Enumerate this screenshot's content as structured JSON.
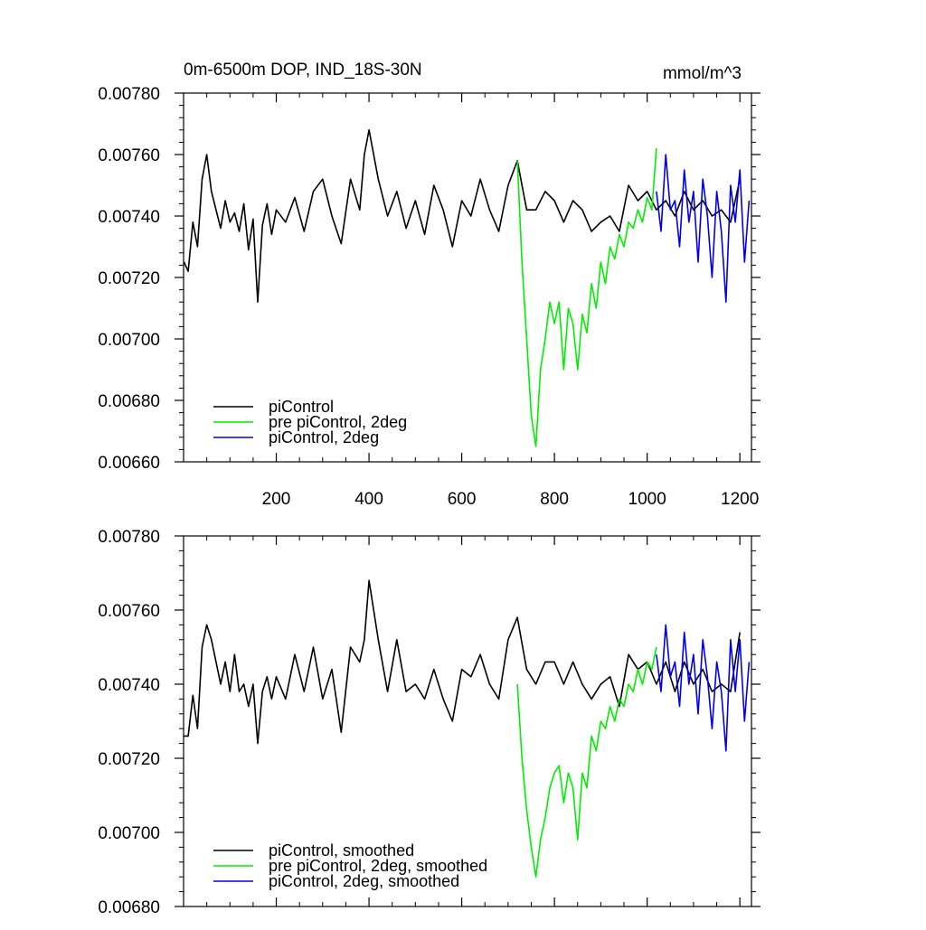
{
  "chart_data": [
    {
      "type": "line",
      "title": "0m-6500m DOP, IND_18S-30N",
      "units": "mmol/m^3",
      "xlim": [
        0,
        1225
      ],
      "ylim": [
        0.0066,
        0.0078
      ],
      "xticks": [
        200,
        400,
        600,
        800,
        1000,
        1200
      ],
      "xtick_labels": [
        "200",
        "400",
        "600",
        "800",
        "1000",
        "1200"
      ],
      "yticks": [
        0.0066,
        0.0068,
        0.007,
        0.0072,
        0.0074,
        0.0076,
        0.0078
      ],
      "ytick_labels": [
        "0.00660",
        "0.00680",
        "0.00700",
        "0.00720",
        "0.00740",
        "0.00760",
        "0.00780"
      ],
      "legend_position": "bottom-left",
      "series": [
        {
          "name": "piControl",
          "color": "#000000",
          "x": [
            1,
            10,
            20,
            30,
            40,
            50,
            60,
            70,
            80,
            90,
            100,
            110,
            120,
            130,
            140,
            150,
            160,
            170,
            180,
            190,
            200,
            220,
            240,
            260,
            280,
            300,
            320,
            340,
            360,
            380,
            390,
            400,
            420,
            440,
            460,
            480,
            500,
            520,
            540,
            560,
            580,
            600,
            620,
            640,
            660,
            680,
            700,
            720,
            740,
            760,
            780,
            800,
            820,
            840,
            860,
            880,
            900,
            920,
            940,
            960,
            980,
            1000,
            1020,
            1040,
            1060,
            1080,
            1100,
            1120,
            1140,
            1160,
            1180,
            1200
          ],
          "y": [
            0.00725,
            0.00722,
            0.00738,
            0.0073,
            0.00752,
            0.0076,
            0.00748,
            0.00742,
            0.00736,
            0.00745,
            0.00738,
            0.00741,
            0.00735,
            0.00744,
            0.00729,
            0.00739,
            0.00712,
            0.00737,
            0.00744,
            0.00734,
            0.00742,
            0.00738,
            0.00746,
            0.00735,
            0.00748,
            0.00752,
            0.0074,
            0.00731,
            0.00752,
            0.00742,
            0.0076,
            0.00768,
            0.00752,
            0.0074,
            0.00748,
            0.00736,
            0.00745,
            0.00734,
            0.0075,
            0.00742,
            0.0073,
            0.00745,
            0.0074,
            0.00752,
            0.00742,
            0.00735,
            0.0075,
            0.00758,
            0.00742,
            0.00742,
            0.00748,
            0.00745,
            0.00738,
            0.00745,
            0.00742,
            0.00735,
            0.00738,
            0.0074,
            0.00735,
            0.0075,
            0.00745,
            0.00748,
            0.00742,
            0.00745,
            0.0074,
            0.00748,
            0.00742,
            0.00745,
            0.0074,
            0.00742,
            0.00738,
            0.00752
          ]
        },
        {
          "name": "pre piControl, 2deg",
          "color": "#00ee00",
          "x": [
            720,
            730,
            740,
            750,
            760,
            770,
            780,
            790,
            800,
            810,
            820,
            830,
            840,
            850,
            860,
            870,
            880,
            890,
            900,
            910,
            920,
            930,
            940,
            950,
            960,
            970,
            980,
            990,
            1000,
            1010,
            1020
          ],
          "y": [
            0.00758,
            0.00725,
            0.007,
            0.00675,
            0.00665,
            0.0069,
            0.007,
            0.00712,
            0.00705,
            0.00712,
            0.0069,
            0.0071,
            0.00705,
            0.0069,
            0.00708,
            0.00702,
            0.00718,
            0.0071,
            0.00725,
            0.00718,
            0.0073,
            0.00726,
            0.00734,
            0.0073,
            0.00738,
            0.00736,
            0.00742,
            0.00738,
            0.00746,
            0.00742,
            0.00762
          ]
        },
        {
          "name": "piControl, 2deg",
          "color": "#0000ee",
          "x": [
            1020,
            1030,
            1040,
            1050,
            1060,
            1070,
            1080,
            1090,
            1100,
            1110,
            1120,
            1130,
            1140,
            1150,
            1160,
            1170,
            1180,
            1190,
            1200,
            1210,
            1220
          ],
          "y": [
            0.00748,
            0.00735,
            0.0076,
            0.00742,
            0.00745,
            0.0073,
            0.00755,
            0.00738,
            0.00748,
            0.00725,
            0.00752,
            0.0074,
            0.0072,
            0.00748,
            0.00735,
            0.00712,
            0.0075,
            0.00738,
            0.00755,
            0.00725,
            0.00745
          ]
        }
      ]
    },
    {
      "type": "line",
      "xlim": [
        0,
        1225
      ],
      "ylim": [
        0.0068,
        0.0078
      ],
      "xticks": [
        200,
        400,
        600,
        800,
        1000,
        1200
      ],
      "yticks": [
        0.0068,
        0.007,
        0.0072,
        0.0074,
        0.0076,
        0.0078
      ],
      "ytick_labels": [
        "0.00680",
        "0.00700",
        "0.00720",
        "0.00740",
        "0.00760",
        "0.00780"
      ],
      "legend_position": "bottom-left",
      "series": [
        {
          "name": "piControl, smoothed",
          "color": "#000000",
          "x": [
            1,
            10,
            20,
            30,
            40,
            50,
            60,
            70,
            80,
            90,
            100,
            110,
            120,
            130,
            140,
            150,
            160,
            170,
            180,
            190,
            200,
            220,
            240,
            260,
            280,
            300,
            320,
            340,
            360,
            380,
            390,
            400,
            420,
            440,
            460,
            480,
            500,
            520,
            540,
            560,
            580,
            600,
            620,
            640,
            660,
            680,
            700,
            720,
            740,
            760,
            780,
            800,
            820,
            840,
            860,
            880,
            900,
            920,
            940,
            960,
            980,
            1000,
            1020,
            1040,
            1060,
            1080,
            1100,
            1120,
            1140,
            1160,
            1180,
            1200
          ],
          "y": [
            0.00726,
            0.00726,
            0.00737,
            0.00728,
            0.0075,
            0.00756,
            0.00752,
            0.00746,
            0.0074,
            0.00746,
            0.00738,
            0.00748,
            0.00738,
            0.0074,
            0.00734,
            0.0074,
            0.00724,
            0.00738,
            0.00742,
            0.00736,
            0.00742,
            0.00736,
            0.00748,
            0.00738,
            0.0075,
            0.00736,
            0.00744,
            0.00727,
            0.0075,
            0.00746,
            0.00752,
            0.00768,
            0.00752,
            0.00738,
            0.00752,
            0.00738,
            0.0074,
            0.00736,
            0.00744,
            0.00736,
            0.0073,
            0.00744,
            0.00742,
            0.00748,
            0.0074,
            0.00736,
            0.00752,
            0.00758,
            0.00744,
            0.0074,
            0.00746,
            0.00746,
            0.0074,
            0.00746,
            0.0074,
            0.00736,
            0.0074,
            0.00742,
            0.00734,
            0.00748,
            0.00744,
            0.00746,
            0.0074,
            0.00746,
            0.00738,
            0.00746,
            0.0074,
            0.00744,
            0.00738,
            0.0074,
            0.00738,
            0.00754
          ]
        },
        {
          "name": "pre piControl, 2deg, smoothed",
          "color": "#00ee00",
          "x": [
            720,
            730,
            740,
            750,
            760,
            770,
            780,
            790,
            800,
            810,
            820,
            830,
            840,
            850,
            860,
            870,
            880,
            890,
            900,
            910,
            920,
            930,
            940,
            950,
            960,
            970,
            980,
            990,
            1000,
            1010,
            1020
          ],
          "y": [
            0.0074,
            0.0072,
            0.00706,
            0.00696,
            0.00688,
            0.00698,
            0.00704,
            0.00712,
            0.00716,
            0.00718,
            0.00708,
            0.00716,
            0.00712,
            0.00698,
            0.00716,
            0.00712,
            0.00726,
            0.00722,
            0.0073,
            0.00728,
            0.00734,
            0.0073,
            0.00736,
            0.00734,
            0.0074,
            0.00738,
            0.00744,
            0.0074,
            0.00746,
            0.00744,
            0.0075
          ]
        },
        {
          "name": "piControl, 2deg, smoothed",
          "color": "#0000ee",
          "x": [
            1020,
            1030,
            1040,
            1050,
            1060,
            1070,
            1080,
            1090,
            1100,
            1110,
            1120,
            1130,
            1140,
            1150,
            1160,
            1170,
            1180,
            1190,
            1200,
            1210,
            1220
          ],
          "y": [
            0.00748,
            0.00738,
            0.00756,
            0.00742,
            0.00746,
            0.00734,
            0.00754,
            0.0074,
            0.00748,
            0.00732,
            0.00752,
            0.00742,
            0.00728,
            0.00746,
            0.00738,
            0.00722,
            0.00752,
            0.00738,
            0.00752,
            0.0073,
            0.00746
          ]
        }
      ]
    }
  ]
}
